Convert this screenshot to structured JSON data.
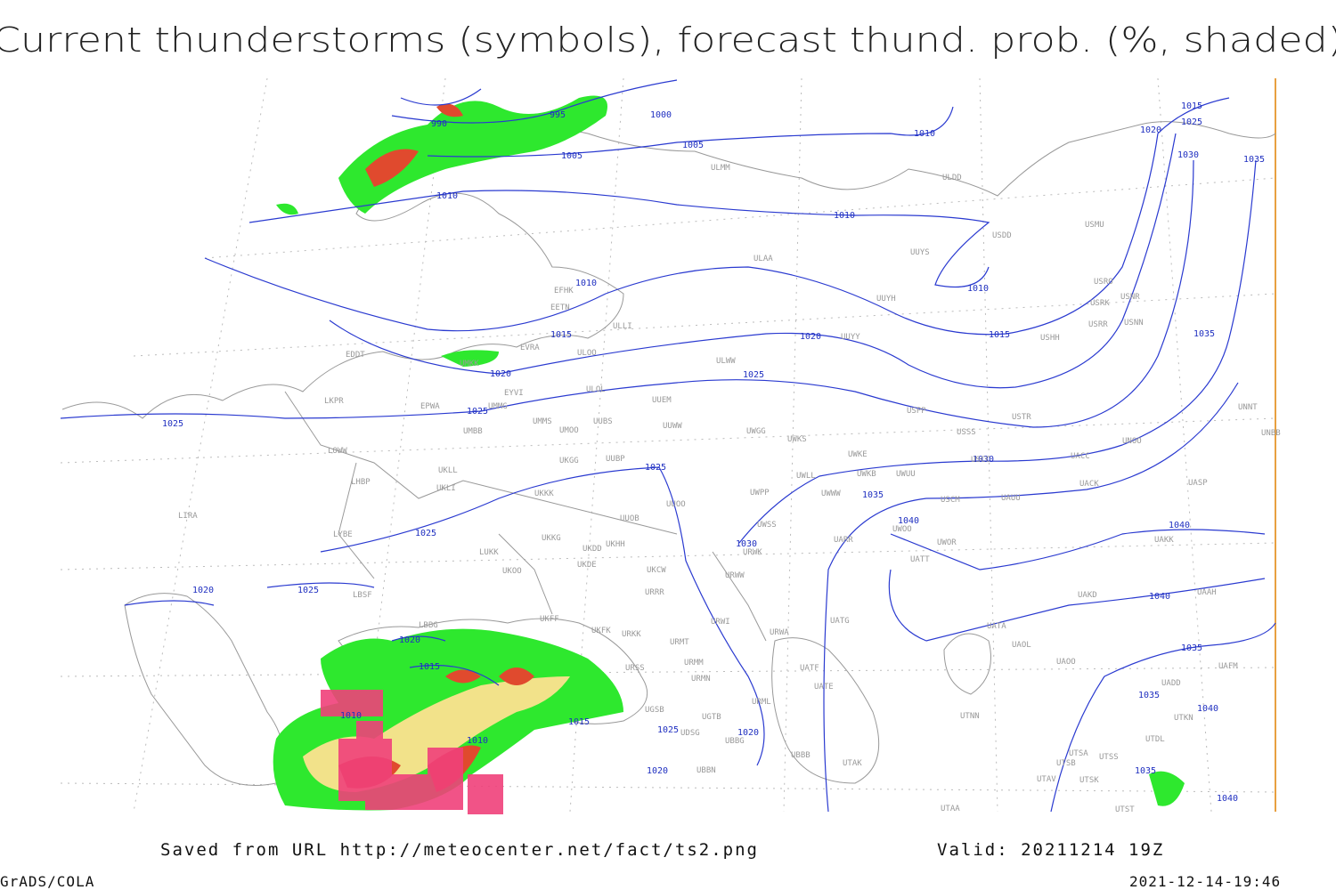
{
  "title": "Current thunderstorms (symbols), forecast thund. prob. (%, shaded)",
  "footer": {
    "source": "Saved from URL http://meteocenter.net/fact/ts2.png",
    "valid": "Valid: 20211214 19Z",
    "software": "GrADS/COLA",
    "timestamp": "2021-12-14-19:46"
  },
  "isobar_labels": [
    990,
    995,
    1000,
    1005,
    1005,
    1010,
    1010,
    1010,
    1010,
    1010,
    1015,
    1025,
    1020,
    1030,
    1035,
    1015,
    1020,
    1015,
    1035,
    1020,
    1025,
    1025,
    1025,
    1030,
    1025,
    1035,
    1040,
    1040,
    1025,
    1030,
    1020,
    1025,
    1040,
    1035,
    1020,
    1015,
    1010,
    1015,
    1035,
    1040,
    1025,
    1010,
    1020,
    1020,
    1035,
    1040
  ],
  "stations": [
    "ULMM",
    "ULDD",
    "USDD",
    "USMU",
    "UUYS",
    "ULAA",
    "EFHK",
    "EETN",
    "ULLI",
    "UUYH",
    "USRO",
    "USRK",
    "USNR",
    "USRR",
    "USNN",
    "USHH",
    "UUYY",
    "EVRA",
    "ULOO",
    "UMKK",
    "ULWW",
    "EDDT",
    "EYVI",
    "ULOL",
    "UUEM",
    "USPP",
    "USTR",
    "UNNT",
    "EPWA",
    "UMMG",
    "LKPR",
    "UMMS",
    "UUBS",
    "UMOO",
    "UUWW",
    "UWGG",
    "UWKS",
    "USSS",
    "UNOO",
    "UNBB",
    "UMBB",
    "LOWW",
    "UKGG",
    "UUBP",
    "UWKE",
    "USCC",
    "UACC",
    "UKLL",
    "UWLL",
    "UWKB",
    "UWUU",
    "UACK",
    "UASP",
    "LHBP",
    "UKLI",
    "UKKK",
    "UWPP",
    "UWWW",
    "USCM",
    "UAUU",
    "UUOO",
    "LIRA",
    "UUOB",
    "UWSS",
    "UWOO",
    "UAKK",
    "LYBE",
    "UKKG",
    "UKDD",
    "UKHH",
    "UARR",
    "UWOR",
    "LUKK",
    "URWK",
    "UATT",
    "UKDE",
    "UKOO",
    "UKCW",
    "URWW",
    "LBSF",
    "URRR",
    "UAKD",
    "UAAH",
    "UKFF",
    "URWI",
    "UATG",
    "LBBG",
    "UKFK",
    "URKK",
    "URMT",
    "URWA",
    "UATA",
    "UAOL",
    "URSS",
    "URMM",
    "UATF",
    "UAOO",
    "UAFM",
    "URMN",
    "UATE",
    "UADD",
    "UGSB",
    "URML",
    "UTNN",
    "UGTB",
    "UTKN",
    "UDSG",
    "UBBG",
    "UTDL",
    "UBBB",
    "UTAK",
    "UTSA",
    "UTSS",
    "UTSB",
    "UBBN",
    "UTAV",
    "UTSK",
    "UTST",
    "UTAA"
  ]
}
